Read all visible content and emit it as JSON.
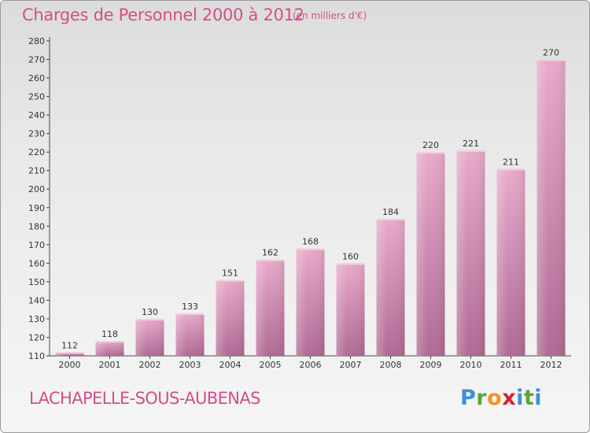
{
  "header": {
    "title": "Charges de Personnel 2000 à 2012",
    "unit": "(en milliers d'€)"
  },
  "footer": {
    "commune": "LACHAPELLE-SOUS-AUBENAS",
    "logo_letters": [
      "P",
      "r",
      "o",
      "x",
      "i",
      "t",
      "i"
    ],
    "logo_colors": [
      "#3f8fd6",
      "#5aa53a",
      "#f39323",
      "#d8222b",
      "#3f8fd6",
      "#5aa53a",
      "#3f8fd6"
    ]
  },
  "colors": {
    "title": "#d24f8a",
    "bar_top": "#e8aacb",
    "bar_bottom": "#b06a95"
  },
  "chart_data": {
    "type": "bar",
    "title": "Charges de Personnel 2000 à 2012",
    "categories": [
      "2000",
      "2001",
      "2002",
      "2003",
      "2004",
      "2005",
      "2006",
      "2007",
      "2008",
      "2009",
      "2010",
      "2011",
      "2012"
    ],
    "values": [
      112,
      118,
      130,
      133,
      151,
      162,
      168,
      160,
      184,
      220,
      221,
      211,
      270
    ],
    "ylim": [
      110,
      280
    ],
    "yticks": [
      110,
      120,
      130,
      140,
      150,
      160,
      170,
      180,
      190,
      200,
      210,
      220,
      230,
      240,
      250,
      260,
      270,
      280
    ],
    "grid": false,
    "legend": "none"
  }
}
